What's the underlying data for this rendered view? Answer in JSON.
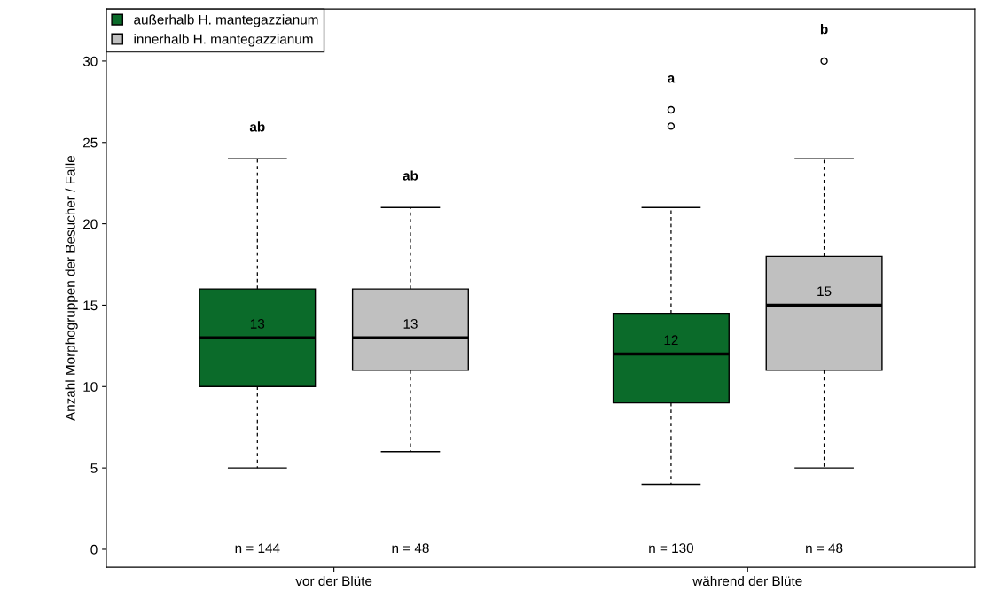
{
  "chart_data": {
    "type": "box",
    "ylabel": "Anzahl Morphogruppen der Besucher / Falle",
    "categories": [
      "vor der Blüte",
      "während der Blüte"
    ],
    "series": [
      {
        "name": "außerhalb H. mantegazzianum",
        "color": "#0b6b2a",
        "value_labels": [
          "13",
          "12"
        ],
        "boxes": [
          {
            "low": 5,
            "q1": 10,
            "median": 13,
            "q3": 16,
            "high": 24
          },
          {
            "low": 4,
            "q1": 9,
            "median": 12,
            "q3": 14.5,
            "high": 21,
            "outliers": [
              26,
              27
            ]
          }
        ]
      },
      {
        "name": "innerhalb H. mantegazzianum",
        "color": "#c0c0c0",
        "value_labels": [
          "13",
          "15"
        ],
        "boxes": [
          {
            "low": 6,
            "q1": 11,
            "median": 13,
            "q3": 16,
            "high": 21
          },
          {
            "low": 5,
            "q1": 11,
            "median": 15,
            "q3": 18,
            "high": 24,
            "outliers": [
              30
            ]
          }
        ]
      }
    ],
    "annotations": [
      "ab",
      "ab",
      "a",
      "b",
      "n = 144",
      "n = 48",
      "n = 130",
      "n = 48"
    ],
    "ylim": [
      -1.1,
      33.2
    ],
    "yticks": [
      0,
      5,
      10,
      15,
      20,
      25,
      30
    ],
    "grid": false,
    "legend": "top left"
  }
}
